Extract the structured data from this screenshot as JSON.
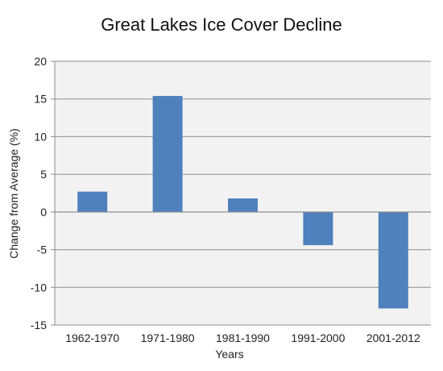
{
  "chart_data": {
    "type": "bar",
    "title": "Great Lakes Ice Cover Decline",
    "xlabel": "Years",
    "ylabel": "Change from Average (%)",
    "categories": [
      "1962-1970",
      "1971-1980",
      "1981-1990",
      "1991-2000",
      "2001-2012"
    ],
    "values": [
      2.7,
      15.4,
      1.8,
      -4.4,
      -12.8
    ],
    "ylim": [
      -15,
      20
    ],
    "yticks": [
      "20",
      "15",
      "10",
      "5",
      "0",
      "-5",
      "-10",
      "-15"
    ],
    "grid": true,
    "legend": "none",
    "bar_color": "#4F81BD",
    "plot_background": "#F2F2F2"
  }
}
